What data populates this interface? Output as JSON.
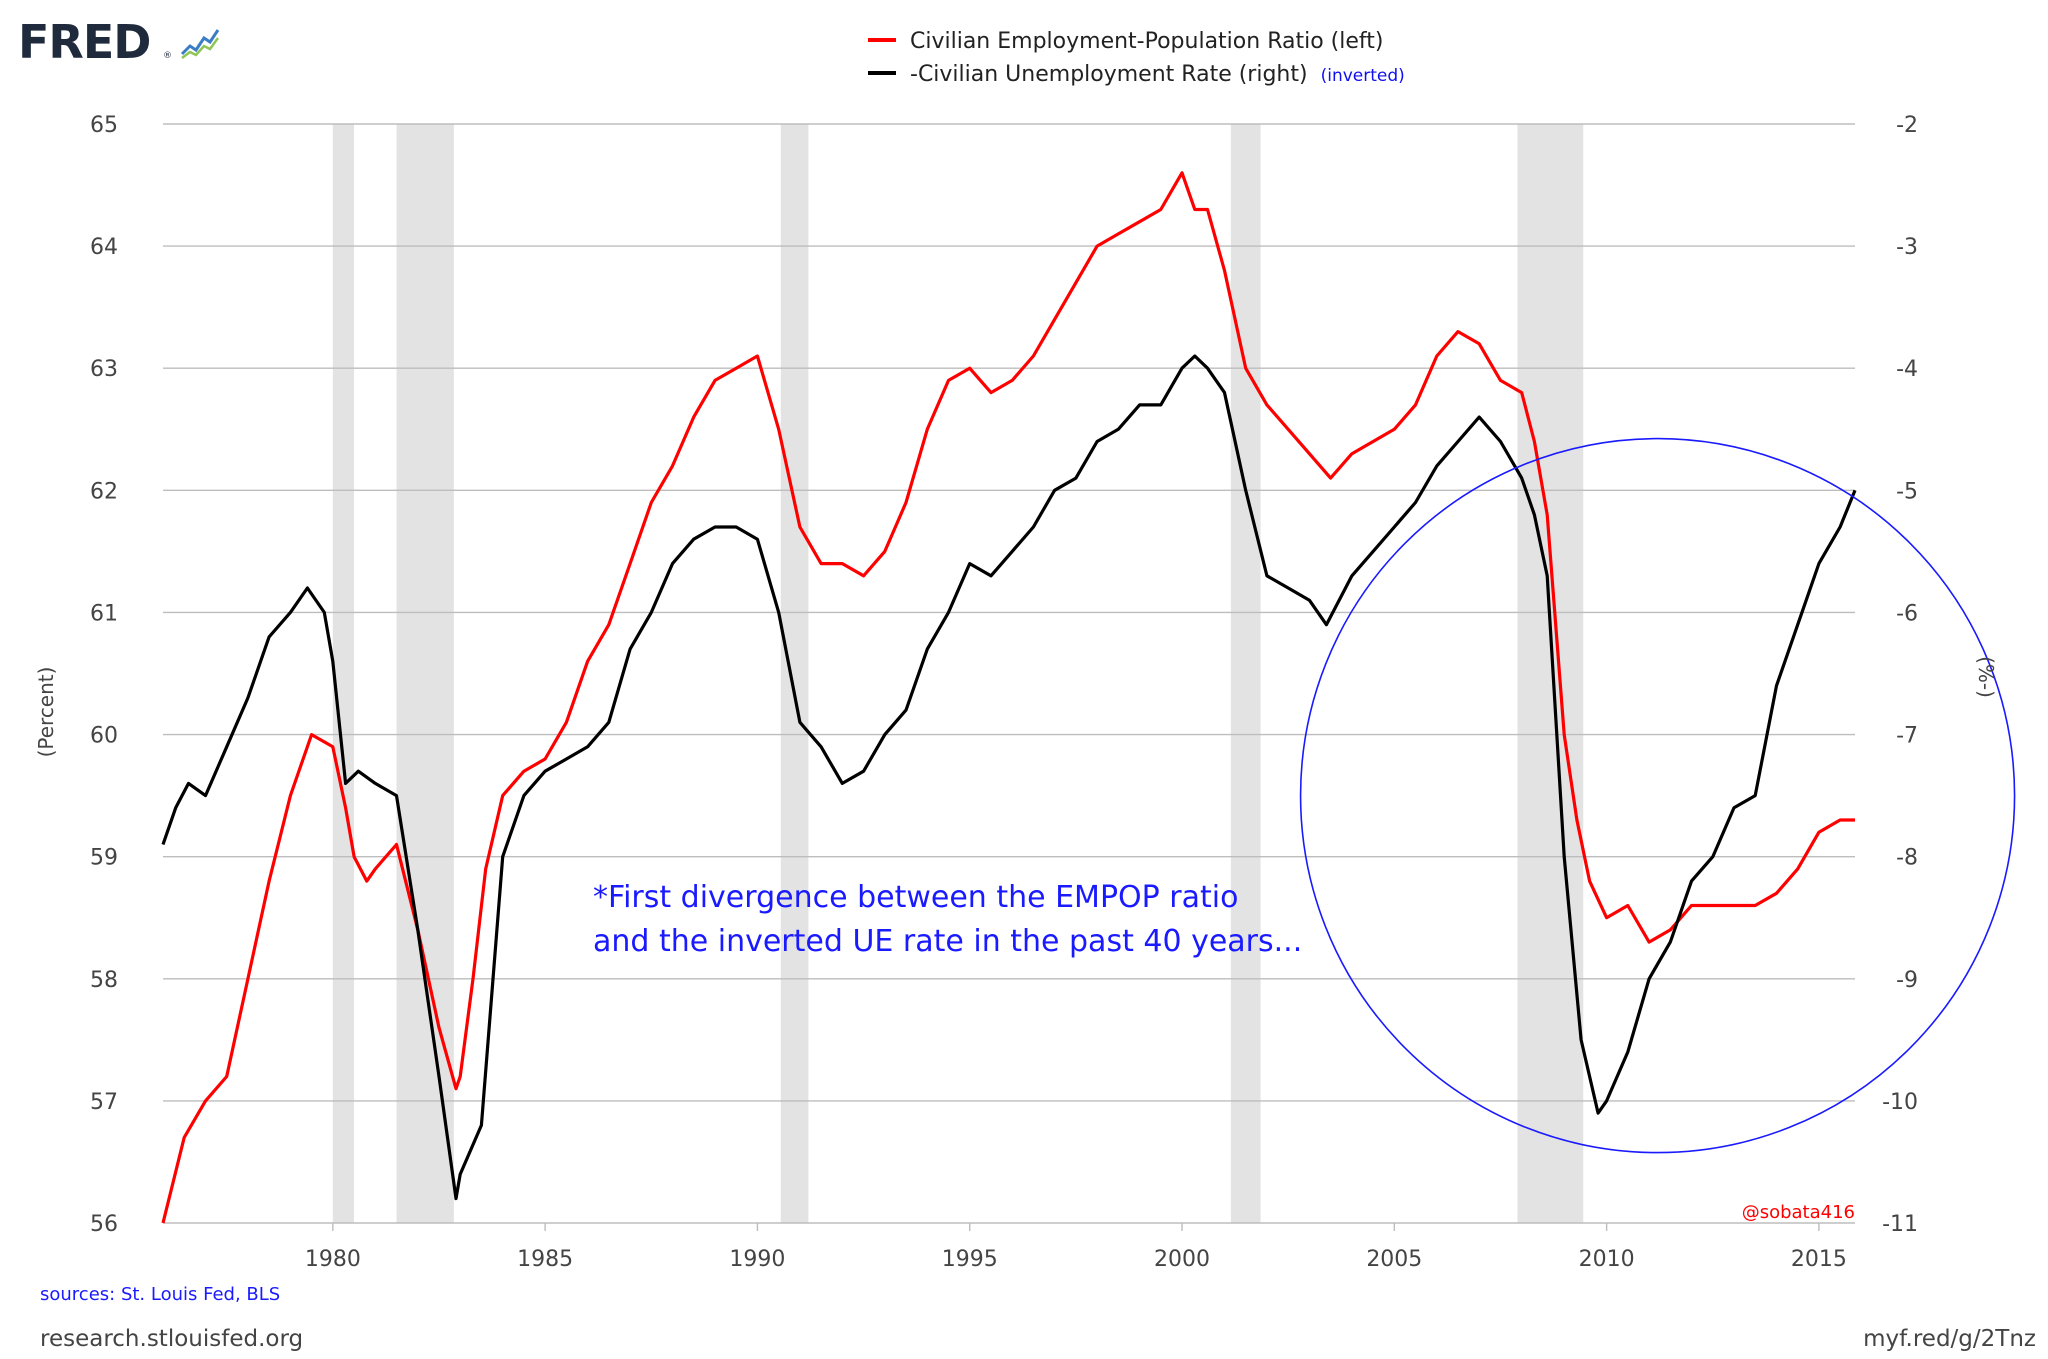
{
  "brand": {
    "logo_text": "FRED",
    "logo_mark": "®"
  },
  "legend": [
    {
      "label": "Civilian Employment-Population Ratio (left)",
      "color": "#ff0000"
    },
    {
      "label": "-Civilian Unemployment Rate (right)",
      "note": "(inverted)",
      "color": "#000000",
      "note_color": "#1010ee"
    }
  ],
  "annotation": {
    "lines": [
      "*First divergence between the EMPOP ratio",
      "and the inverted UE rate in the past 40 years..."
    ],
    "color": "#1a1aff"
  },
  "handle": {
    "text": "@sobata416",
    "color": "#ff0000"
  },
  "footer": {
    "sources": "sources: St. Louis Fed, BLS",
    "site": "research.stlouisfed.org",
    "short_url": "myf.red/g/2Tnz"
  },
  "chart_data": {
    "type": "line",
    "title": "",
    "xlabel": "",
    "ylabel_left": "(Percent)",
    "ylabel_right": "(%-)",
    "xlim": [
      1976.0,
      2015.85
    ],
    "ylim_left": [
      56,
      65
    ],
    "ylim_right": [
      -11,
      -2
    ],
    "x_ticks": [
      1980,
      1985,
      1990,
      1995,
      2000,
      2005,
      2010,
      2015
    ],
    "y_left_ticks": [
      56,
      57,
      58,
      59,
      60,
      61,
      62,
      63,
      64,
      65
    ],
    "y_right_ticks": [
      -11,
      -10,
      -9,
      -8,
      -7,
      -6,
      -5,
      -4,
      -3,
      -2
    ],
    "grid": true,
    "legend_position": "top-center",
    "recessions": [
      [
        1980.0,
        1980.5
      ],
      [
        1981.5,
        1982.85
      ],
      [
        1990.55,
        1991.2
      ],
      [
        2001.15,
        2001.85
      ],
      [
        2007.9,
        2009.45
      ]
    ],
    "highlight_circle": {
      "x_center": 2011.2,
      "y_left_center": 59.5,
      "color": "#1a1aff"
    },
    "series": [
      {
        "name": "Civilian Employment-Population Ratio (left)",
        "axis": "left",
        "color": "#ff0000",
        "x": [
          1976.0,
          1976.5,
          1977.0,
          1977.5,
          1978.0,
          1978.5,
          1979.0,
          1979.5,
          1980.0,
          1980.3,
          1980.5,
          1980.8,
          1981.0,
          1981.5,
          1982.0,
          1982.5,
          1982.9,
          1983.0,
          1983.3,
          1983.6,
          1984.0,
          1984.5,
          1985.0,
          1985.5,
          1986.0,
          1986.5,
          1987.0,
          1987.5,
          1988.0,
          1988.5,
          1989.0,
          1989.5,
          1990.0,
          1990.5,
          1991.0,
          1991.5,
          1992.0,
          1992.5,
          1993.0,
          1993.5,
          1994.0,
          1994.5,
          1995.0,
          1995.5,
          1996.0,
          1996.5,
          1997.0,
          1997.5,
          1998.0,
          1998.5,
          1999.0,
          1999.5,
          2000.0,
          2000.3,
          2000.6,
          2001.0,
          2001.5,
          2002.0,
          2002.5,
          2003.0,
          2003.5,
          2004.0,
          2004.5,
          2005.0,
          2005.5,
          2006.0,
          2006.5,
          2007.0,
          2007.5,
          2008.0,
          2008.3,
          2008.6,
          2009.0,
          2009.3,
          2009.6,
          2010.0,
          2010.5,
          2011.0,
          2011.5,
          2012.0,
          2012.5,
          2013.0,
          2013.5,
          2014.0,
          2014.5,
          2015.0,
          2015.5,
          2015.85
        ],
        "y": [
          56.0,
          56.7,
          57.0,
          57.2,
          58.0,
          58.8,
          59.5,
          60.0,
          59.9,
          59.4,
          59.0,
          58.8,
          58.9,
          59.1,
          58.4,
          57.6,
          57.1,
          57.2,
          58.0,
          58.9,
          59.5,
          59.7,
          59.8,
          60.1,
          60.6,
          60.9,
          61.4,
          61.9,
          62.2,
          62.6,
          62.9,
          63.0,
          63.1,
          62.5,
          61.7,
          61.4,
          61.4,
          61.3,
          61.5,
          61.9,
          62.5,
          62.9,
          63.0,
          62.8,
          62.9,
          63.1,
          63.4,
          63.7,
          64.0,
          64.1,
          64.2,
          64.3,
          64.6,
          64.3,
          64.3,
          63.8,
          63.0,
          62.7,
          62.5,
          62.3,
          62.1,
          62.3,
          62.4,
          62.5,
          62.7,
          63.1,
          63.3,
          63.2,
          62.9,
          62.8,
          62.4,
          61.8,
          60.0,
          59.3,
          58.8,
          58.5,
          58.6,
          58.3,
          58.4,
          58.6,
          58.6,
          58.6,
          58.6,
          58.7,
          58.9,
          59.2,
          59.3,
          59.3
        ]
      },
      {
        "name": "-Civilian Unemployment Rate (right)",
        "axis": "right",
        "color": "#000000",
        "x": [
          1976.0,
          1976.3,
          1976.6,
          1977.0,
          1977.5,
          1978.0,
          1978.5,
          1979.0,
          1979.4,
          1979.8,
          1980.0,
          1980.3,
          1980.6,
          1981.0,
          1981.5,
          1982.0,
          1982.5,
          1982.9,
          1983.0,
          1983.5,
          1984.0,
          1984.5,
          1985.0,
          1985.5,
          1986.0,
          1986.5,
          1987.0,
          1987.5,
          1988.0,
          1988.5,
          1989.0,
          1989.5,
          1990.0,
          1990.5,
          1991.0,
          1991.5,
          1992.0,
          1992.5,
          1993.0,
          1993.5,
          1994.0,
          1994.5,
          1995.0,
          1995.5,
          1996.0,
          1996.5,
          1997.0,
          1997.5,
          1998.0,
          1998.5,
          1999.0,
          1999.5,
          2000.0,
          2000.3,
          2000.6,
          2001.0,
          2001.5,
          2002.0,
          2002.5,
          2003.0,
          2003.4,
          2004.0,
          2004.5,
          2005.0,
          2005.5,
          2006.0,
          2006.5,
          2007.0,
          2007.5,
          2008.0,
          2008.3,
          2008.6,
          2009.0,
          2009.4,
          2009.8,
          2010.0,
          2010.5,
          2011.0,
          2011.5,
          2012.0,
          2012.5,
          2013.0,
          2013.5,
          2014.0,
          2014.5,
          2015.0,
          2015.5,
          2015.85
        ],
        "y": [
          -7.9,
          -7.6,
          -7.4,
          -7.5,
          -7.1,
          -6.7,
          -6.2,
          -6.0,
          -5.8,
          -6.0,
          -6.4,
          -7.4,
          -7.3,
          -7.4,
          -7.5,
          -8.6,
          -9.8,
          -10.8,
          -10.6,
          -10.2,
          -8.0,
          -7.5,
          -7.3,
          -7.2,
          -7.1,
          -6.9,
          -6.3,
          -6.0,
          -5.6,
          -5.4,
          -5.3,
          -5.3,
          -5.4,
          -6.0,
          -6.9,
          -7.1,
          -7.4,
          -7.3,
          -7.0,
          -6.8,
          -6.3,
          -6.0,
          -5.6,
          -5.7,
          -5.5,
          -5.3,
          -5.0,
          -4.9,
          -4.6,
          -4.5,
          -4.3,
          -4.3,
          -4.0,
          -3.9,
          -4.0,
          -4.2,
          -5.0,
          -5.7,
          -5.8,
          -5.9,
          -6.1,
          -5.7,
          -5.5,
          -5.3,
          -5.1,
          -4.8,
          -4.6,
          -4.4,
          -4.6,
          -4.9,
          -5.2,
          -5.7,
          -8.0,
          -9.5,
          -10.1,
          -10.0,
          -9.6,
          -9.0,
          -8.7,
          -8.2,
          -8.0,
          -7.6,
          -7.5,
          -6.6,
          -6.1,
          -5.6,
          -5.3,
          -5.0
        ]
      }
    ]
  }
}
